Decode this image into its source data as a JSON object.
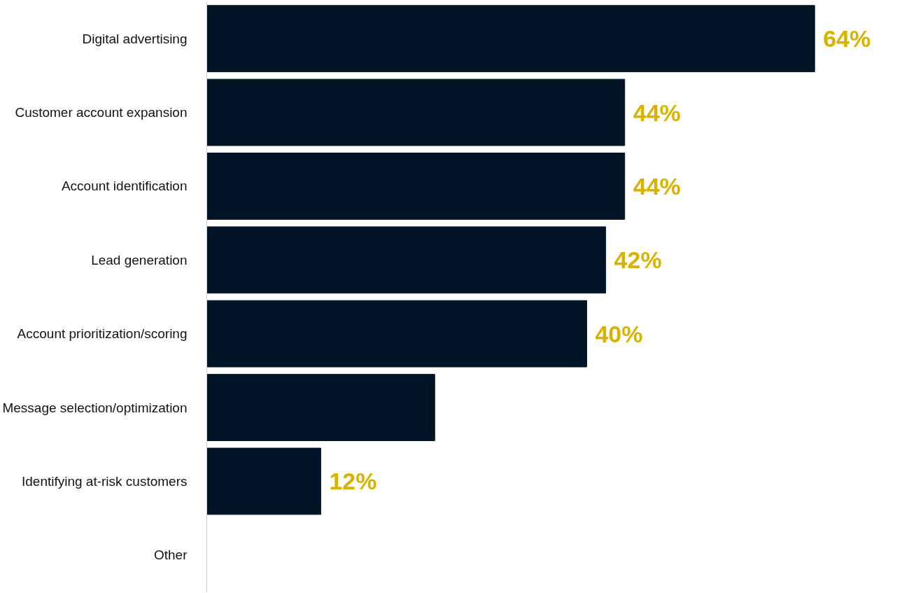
{
  "chart_data": {
    "type": "bar",
    "orientation": "horizontal",
    "categories": [
      "Digital advertising",
      "Customer account expansion",
      "Account identification",
      "Lead generation",
      "Account prioritization/scoring",
      "Message selection/optimization",
      "Identifying at-risk customers",
      "Other"
    ],
    "values": [
      64,
      44,
      44,
      42,
      40,
      24,
      12,
      null
    ],
    "value_labels": [
      "64%",
      "44%",
      "44%",
      "42%",
      "40%",
      null,
      "12%",
      null
    ],
    "color": "#021526",
    "grid": false
  }
}
